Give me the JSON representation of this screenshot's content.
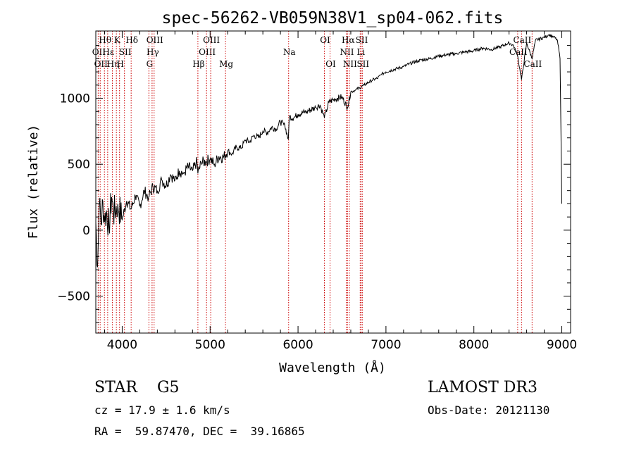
{
  "chart_data": {
    "type": "line",
    "title": "spec-56262-VB059N38V1_sp04-062.fits",
    "xlabel": "Wavelength (Å)",
    "ylabel": "Flux (relative)",
    "xlim": [
      3700,
      9100
    ],
    "ylim": [
      -780,
      1510
    ],
    "xticks": [
      4000,
      5000,
      6000,
      7000,
      8000,
      9000
    ],
    "yticks": [
      -500,
      0,
      500,
      1000
    ],
    "tick_labels_x": [
      "4000",
      "5000",
      "6000",
      "7000",
      "8000",
      "9000"
    ],
    "tick_labels_y": [
      "−500",
      "0",
      "500",
      "1000"
    ],
    "line_color": "#000000",
    "marker_color": "#cc0000",
    "series": [
      {
        "name": "flux",
        "x": [
          3700,
          3720,
          3740,
          3760,
          3780,
          3800,
          3820,
          3850,
          3880,
          3900,
          3950,
          4000,
          4050,
          4100,
          4150,
          4200,
          4250,
          4300,
          4350,
          4400,
          4450,
          4500,
          4550,
          4600,
          4650,
          4700,
          4750,
          4800,
          4850,
          4861,
          4900,
          4950,
          5000,
          5050,
          5100,
          5150,
          5200,
          5250,
          5300,
          5350,
          5400,
          5450,
          5500,
          5550,
          5600,
          5650,
          5700,
          5750,
          5800,
          5850,
          5890,
          5900,
          5950,
          6000,
          6100,
          6200,
          6250,
          6300,
          6350,
          6400,
          6450,
          6500,
          6563,
          6600,
          6650,
          6700,
          6750,
          6800,
          6850,
          6900,
          6950,
          7000,
          7100,
          7200,
          7300,
          7400,
          7500,
          7600,
          7700,
          7800,
          7900,
          8000,
          8100,
          8200,
          8300,
          8400,
          8450,
          8498,
          8542,
          8600,
          8662,
          8700,
          8800,
          8850,
          8900,
          8950,
          8980,
          9000
        ],
        "y": [
          60,
          -280,
          200,
          40,
          220,
          60,
          150,
          30,
          250,
          120,
          200,
          80,
          220,
          160,
          260,
          180,
          300,
          250,
          330,
          300,
          380,
          340,
          420,
          380,
          450,
          430,
          480,
          450,
          520,
          430,
          510,
          520,
          540,
          500,
          560,
          550,
          600,
          580,
          630,
          620,
          680,
          670,
          720,
          700,
          750,
          740,
          780,
          770,
          820,
          790,
          690,
          860,
          850,
          880,
          900,
          930,
          950,
          850,
          970,
          990,
          1000,
          1010,
          930,
          1050,
          1060,
          1080,
          1100,
          1120,
          1140,
          1150,
          1180,
          1200,
          1220,
          1240,
          1270,
          1290,
          1300,
          1320,
          1330,
          1340,
          1350,
          1360,
          1380,
          1370,
          1390,
          1420,
          1400,
          1320,
          1140,
          1420,
          1300,
          1440,
          1460,
          1480,
          1470,
          1440,
          1300,
          200
        ]
      }
    ],
    "lines": [
      {
        "x": 3727,
        "label": "OII",
        "row": 1
      },
      {
        "x": 3750,
        "label": "OII",
        "row": 2
      },
      {
        "x": 3798,
        "label": "Hθ",
        "row": 0
      },
      {
        "x": 3835,
        "label": "Hε",
        "row": 1
      },
      {
        "x": 3889,
        "label": "Hη",
        "row": 2
      },
      {
        "x": 3934,
        "label": "K",
        "row": 0
      },
      {
        "x": 3970,
        "label": "H",
        "row": 2
      },
      {
        "x": 4026,
        "label": "SII",
        "row": 1
      },
      {
        "x": 4102,
        "label": "Hδ",
        "row": 0
      },
      {
        "x": 4304,
        "label": "G",
        "row": 2
      },
      {
        "x": 4340,
        "label": "Hγ",
        "row": 1
      },
      {
        "x": 4363,
        "label": "OIII",
        "row": 0
      },
      {
        "x": 4861,
        "label": "Hβ",
        "row": 2
      },
      {
        "x": 4959,
        "label": "OIII",
        "row": 1
      },
      {
        "x": 5007,
        "label": "OIII",
        "row": 0
      },
      {
        "x": 5175,
        "label": "Mg",
        "row": 2
      },
      {
        "x": 5893,
        "label": "Na",
        "row": 1
      },
      {
        "x": 6300,
        "label": "OI",
        "row": 0
      },
      {
        "x": 6364,
        "label": "OI",
        "row": 2
      },
      {
        "x": 6548,
        "label": "NII",
        "row": 1
      },
      {
        "x": 6563,
        "label": "Hα",
        "row": 0
      },
      {
        "x": 6583,
        "label": "NII",
        "row": 2
      },
      {
        "x": 6707,
        "label": "Li",
        "row": 1
      },
      {
        "x": 6717,
        "label": "SII",
        "row": 0
      },
      {
        "x": 6731,
        "label": "SII",
        "row": 2
      },
      {
        "x": 8498,
        "label": "CaII",
        "row": 1
      },
      {
        "x": 8542,
        "label": "CaII",
        "row": 0
      },
      {
        "x": 8662,
        "label": "CaII",
        "row": 2
      }
    ]
  },
  "info": {
    "classification": "STAR    G5",
    "survey": "LAMOST DR3",
    "redshift": "cz = 17.9 ± 1.6 km/s",
    "obs_date": "Obs-Date: 20121130",
    "coords": "RA =  59.87470, DEC =  39.16865"
  }
}
